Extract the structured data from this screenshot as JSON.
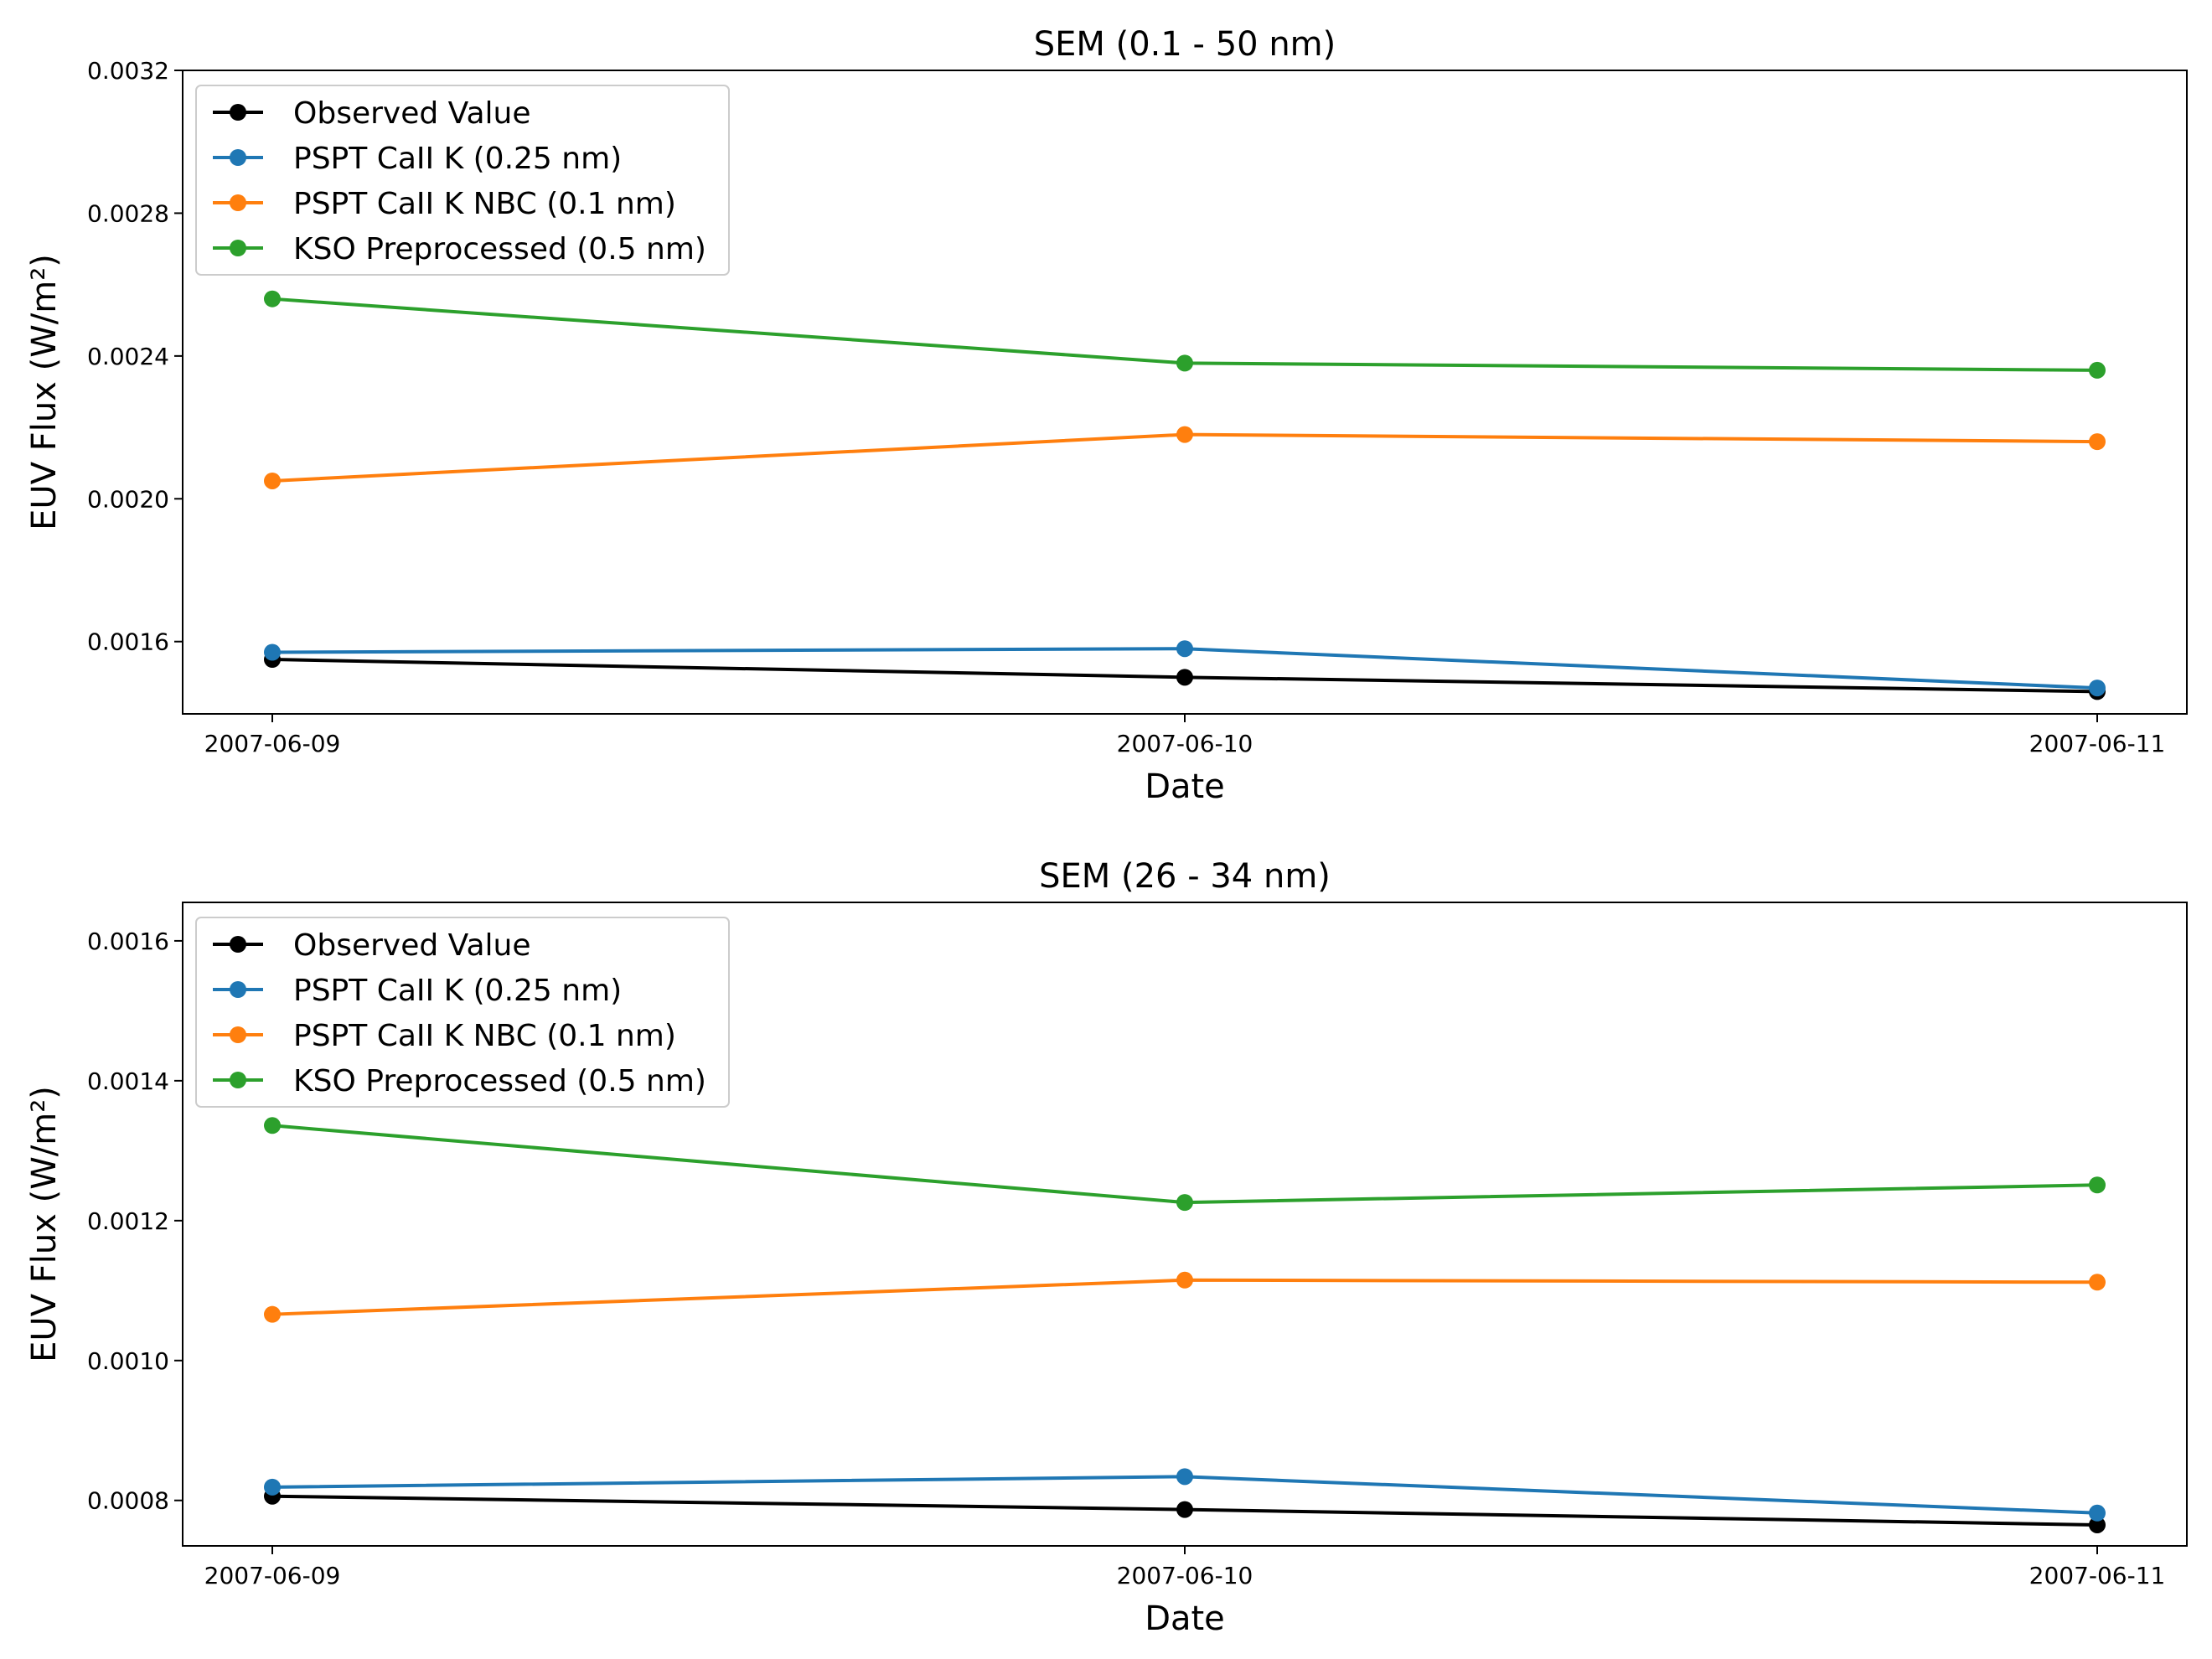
{
  "chart_data": [
    {
      "type": "line",
      "title": "SEM (0.1 - 50 nm)",
      "xlabel": "Date",
      "ylabel": "EUV Flux (W/m²)",
      "x": [
        "2007-06-09",
        "2007-06-10",
        "2007-06-11"
      ],
      "x_ticks": [
        "2007-06-09",
        "2007-06-10",
        "2007-06-11"
      ],
      "y_ticks": [
        "0.0016",
        "0.0020",
        "0.0024",
        "0.0028",
        "0.0032"
      ],
      "ylim": [
        0.0013975,
        0.0032
      ],
      "grid": false,
      "legend_position": "upper-left",
      "series": [
        {
          "name": "Observed Value",
          "color": "#000000",
          "values": [
            0.00155,
            0.0015,
            0.00146
          ]
        },
        {
          "name": "PSPT CaII K (0.25 nm)",
          "color": "#1f77b4",
          "values": [
            0.00157,
            0.00158,
            0.00147
          ]
        },
        {
          "name": "PSPT CaII K NBC (0.1 nm)",
          "color": "#ff7f0e",
          "values": [
            0.00205,
            0.00218,
            0.00216
          ]
        },
        {
          "name": "KSO Preprocessed (0.5 nm)",
          "color": "#2ca02c",
          "values": [
            0.00256,
            0.00238,
            0.00236
          ]
        }
      ]
    },
    {
      "type": "line",
      "title": "SEM (26 - 34 nm)",
      "xlabel": "Date",
      "ylabel": "EUV Flux (W/m²)",
      "x": [
        "2007-06-09",
        "2007-06-10",
        "2007-06-11"
      ],
      "x_ticks": [
        "2007-06-09",
        "2007-06-10",
        "2007-06-11"
      ],
      "y_ticks": [
        "0.0008",
        "0.0010",
        "0.0012",
        "0.0014",
        "0.0016"
      ],
      "ylim": [
        0.000735,
        0.001655
      ],
      "grid": false,
      "legend_position": "upper-left",
      "series": [
        {
          "name": "Observed Value",
          "color": "#000000",
          "values": [
            0.000806,
            0.000787,
            0.000765
          ]
        },
        {
          "name": "PSPT CaII K (0.25 nm)",
          "color": "#1f77b4",
          "values": [
            0.000819,
            0.000834,
            0.000782
          ]
        },
        {
          "name": "PSPT CaII K NBC (0.1 nm)",
          "color": "#ff7f0e",
          "values": [
            0.001066,
            0.001115,
            0.001112
          ]
        },
        {
          "name": "KSO Preprocessed (0.5 nm)",
          "color": "#2ca02c",
          "values": [
            0.001336,
            0.001226,
            0.001251
          ]
        }
      ]
    }
  ]
}
